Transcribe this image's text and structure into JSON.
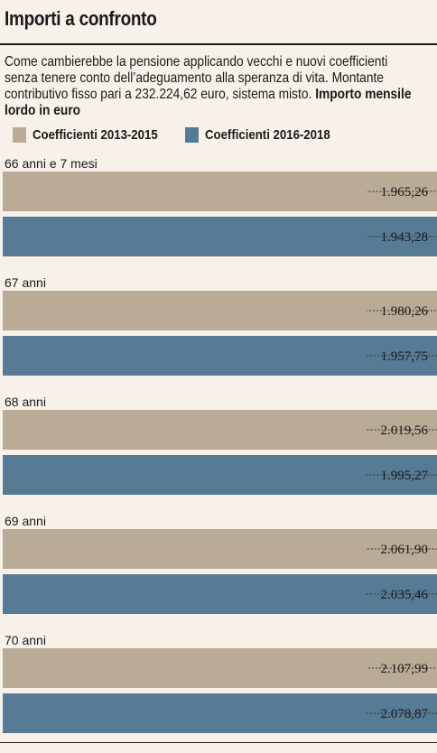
{
  "title": "Importi a confronto",
  "subtitle": "Come cambierebbe la pensione applicando vecchi e nuovi coefficienti senza tenere conto dell’adeguamento alla speranza di vita. Montante contributivo fisso pari a 232.224,62 euro, sistema misto.",
  "subtitle_bold": "Importo mensile lordo in euro",
  "colors": {
    "series1": "#b9ab95",
    "series2": "#577a95",
    "background": "#f7f1ea"
  },
  "chart_data": {
    "type": "bar",
    "orientation": "horizontal",
    "categories": [
      "66 anni e 7 mesi",
      "67 anni",
      "68 anni",
      "69 anni",
      "70 anni"
    ],
    "series": [
      {
        "name": "Coefficienti 2013-2015",
        "values": [
          1965.26,
          1980.26,
          2019.56,
          2061.9,
          2107.99
        ],
        "labels": [
          "1.965,26",
          "1.980,26",
          "2.019,56",
          "2.061,90",
          "2.107,99"
        ]
      },
      {
        "name": "Coefficienti 2016-2018",
        "values": [
          1943.28,
          1957.75,
          1995.27,
          2035.46,
          2078.87
        ],
        "labels": [
          "1.943,28",
          "1.957,75",
          "1.995,27",
          "2.035,46",
          "2.078,87"
        ]
      }
    ],
    "xlim": [
      1700,
      2150
    ],
    "grid": false,
    "legend_position": "top-left"
  }
}
